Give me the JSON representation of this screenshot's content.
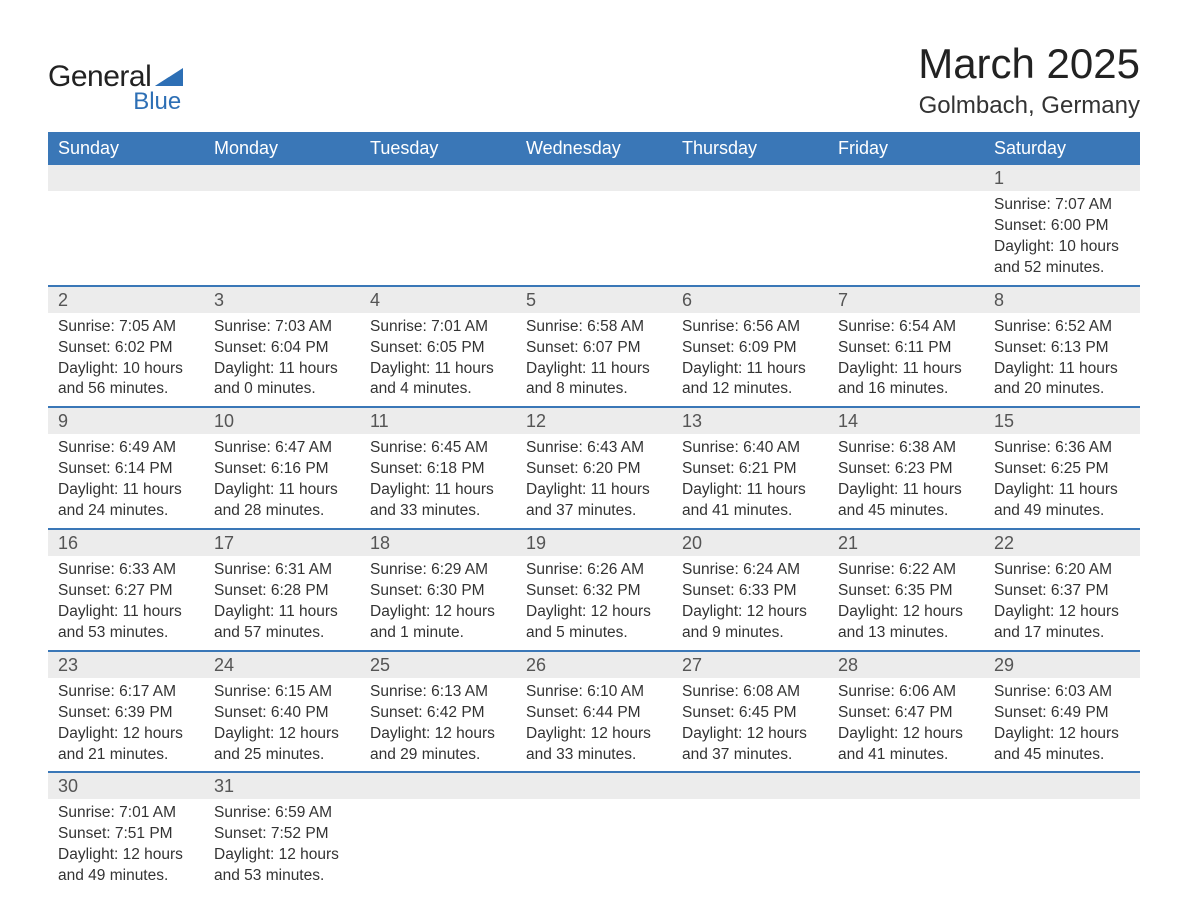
{
  "logo": {
    "text_general": "General",
    "text_blue": "Blue",
    "shape_color": "#2d6fb5"
  },
  "header": {
    "month_title": "March 2025",
    "location": "Golmbach, Germany"
  },
  "colors": {
    "header_bg": "#3a77b7",
    "header_text": "#ffffff",
    "daynum_bg": "#ececec",
    "row_border": "#3a77b7",
    "body_text": "#333333",
    "page_bg": "#ffffff"
  },
  "typography": {
    "month_title_fontsize": 42,
    "location_fontsize": 24,
    "dayhead_fontsize": 18,
    "daynum_fontsize": 18,
    "cell_fontsize": 15.5,
    "font_family": "Arial"
  },
  "day_headers": [
    "Sunday",
    "Monday",
    "Tuesday",
    "Wednesday",
    "Thursday",
    "Friday",
    "Saturday"
  ],
  "weeks": [
    {
      "nums": [
        "",
        "",
        "",
        "",
        "",
        "",
        "1"
      ],
      "cells": [
        null,
        null,
        null,
        null,
        null,
        null,
        {
          "sunrise": "Sunrise: 7:07 AM",
          "sunset": "Sunset: 6:00 PM",
          "dl1": "Daylight: 10 hours",
          "dl2": "and 52 minutes."
        }
      ]
    },
    {
      "nums": [
        "2",
        "3",
        "4",
        "5",
        "6",
        "7",
        "8"
      ],
      "cells": [
        {
          "sunrise": "Sunrise: 7:05 AM",
          "sunset": "Sunset: 6:02 PM",
          "dl1": "Daylight: 10 hours",
          "dl2": "and 56 minutes."
        },
        {
          "sunrise": "Sunrise: 7:03 AM",
          "sunset": "Sunset: 6:04 PM",
          "dl1": "Daylight: 11 hours",
          "dl2": "and 0 minutes."
        },
        {
          "sunrise": "Sunrise: 7:01 AM",
          "sunset": "Sunset: 6:05 PM",
          "dl1": "Daylight: 11 hours",
          "dl2": "and 4 minutes."
        },
        {
          "sunrise": "Sunrise: 6:58 AM",
          "sunset": "Sunset: 6:07 PM",
          "dl1": "Daylight: 11 hours",
          "dl2": "and 8 minutes."
        },
        {
          "sunrise": "Sunrise: 6:56 AM",
          "sunset": "Sunset: 6:09 PM",
          "dl1": "Daylight: 11 hours",
          "dl2": "and 12 minutes."
        },
        {
          "sunrise": "Sunrise: 6:54 AM",
          "sunset": "Sunset: 6:11 PM",
          "dl1": "Daylight: 11 hours",
          "dl2": "and 16 minutes."
        },
        {
          "sunrise": "Sunrise: 6:52 AM",
          "sunset": "Sunset: 6:13 PM",
          "dl1": "Daylight: 11 hours",
          "dl2": "and 20 minutes."
        }
      ]
    },
    {
      "nums": [
        "9",
        "10",
        "11",
        "12",
        "13",
        "14",
        "15"
      ],
      "cells": [
        {
          "sunrise": "Sunrise: 6:49 AM",
          "sunset": "Sunset: 6:14 PM",
          "dl1": "Daylight: 11 hours",
          "dl2": "and 24 minutes."
        },
        {
          "sunrise": "Sunrise: 6:47 AM",
          "sunset": "Sunset: 6:16 PM",
          "dl1": "Daylight: 11 hours",
          "dl2": "and 28 minutes."
        },
        {
          "sunrise": "Sunrise: 6:45 AM",
          "sunset": "Sunset: 6:18 PM",
          "dl1": "Daylight: 11 hours",
          "dl2": "and 33 minutes."
        },
        {
          "sunrise": "Sunrise: 6:43 AM",
          "sunset": "Sunset: 6:20 PM",
          "dl1": "Daylight: 11 hours",
          "dl2": "and 37 minutes."
        },
        {
          "sunrise": "Sunrise: 6:40 AM",
          "sunset": "Sunset: 6:21 PM",
          "dl1": "Daylight: 11 hours",
          "dl2": "and 41 minutes."
        },
        {
          "sunrise": "Sunrise: 6:38 AM",
          "sunset": "Sunset: 6:23 PM",
          "dl1": "Daylight: 11 hours",
          "dl2": "and 45 minutes."
        },
        {
          "sunrise": "Sunrise: 6:36 AM",
          "sunset": "Sunset: 6:25 PM",
          "dl1": "Daylight: 11 hours",
          "dl2": "and 49 minutes."
        }
      ]
    },
    {
      "nums": [
        "16",
        "17",
        "18",
        "19",
        "20",
        "21",
        "22"
      ],
      "cells": [
        {
          "sunrise": "Sunrise: 6:33 AM",
          "sunset": "Sunset: 6:27 PM",
          "dl1": "Daylight: 11 hours",
          "dl2": "and 53 minutes."
        },
        {
          "sunrise": "Sunrise: 6:31 AM",
          "sunset": "Sunset: 6:28 PM",
          "dl1": "Daylight: 11 hours",
          "dl2": "and 57 minutes."
        },
        {
          "sunrise": "Sunrise: 6:29 AM",
          "sunset": "Sunset: 6:30 PM",
          "dl1": "Daylight: 12 hours",
          "dl2": "and 1 minute."
        },
        {
          "sunrise": "Sunrise: 6:26 AM",
          "sunset": "Sunset: 6:32 PM",
          "dl1": "Daylight: 12 hours",
          "dl2": "and 5 minutes."
        },
        {
          "sunrise": "Sunrise: 6:24 AM",
          "sunset": "Sunset: 6:33 PM",
          "dl1": "Daylight: 12 hours",
          "dl2": "and 9 minutes."
        },
        {
          "sunrise": "Sunrise: 6:22 AM",
          "sunset": "Sunset: 6:35 PM",
          "dl1": "Daylight: 12 hours",
          "dl2": "and 13 minutes."
        },
        {
          "sunrise": "Sunrise: 6:20 AM",
          "sunset": "Sunset: 6:37 PM",
          "dl1": "Daylight: 12 hours",
          "dl2": "and 17 minutes."
        }
      ]
    },
    {
      "nums": [
        "23",
        "24",
        "25",
        "26",
        "27",
        "28",
        "29"
      ],
      "cells": [
        {
          "sunrise": "Sunrise: 6:17 AM",
          "sunset": "Sunset: 6:39 PM",
          "dl1": "Daylight: 12 hours",
          "dl2": "and 21 minutes."
        },
        {
          "sunrise": "Sunrise: 6:15 AM",
          "sunset": "Sunset: 6:40 PM",
          "dl1": "Daylight: 12 hours",
          "dl2": "and 25 minutes."
        },
        {
          "sunrise": "Sunrise: 6:13 AM",
          "sunset": "Sunset: 6:42 PM",
          "dl1": "Daylight: 12 hours",
          "dl2": "and 29 minutes."
        },
        {
          "sunrise": "Sunrise: 6:10 AM",
          "sunset": "Sunset: 6:44 PM",
          "dl1": "Daylight: 12 hours",
          "dl2": "and 33 minutes."
        },
        {
          "sunrise": "Sunrise: 6:08 AM",
          "sunset": "Sunset: 6:45 PM",
          "dl1": "Daylight: 12 hours",
          "dl2": "and 37 minutes."
        },
        {
          "sunrise": "Sunrise: 6:06 AM",
          "sunset": "Sunset: 6:47 PM",
          "dl1": "Daylight: 12 hours",
          "dl2": "and 41 minutes."
        },
        {
          "sunrise": "Sunrise: 6:03 AM",
          "sunset": "Sunset: 6:49 PM",
          "dl1": "Daylight: 12 hours",
          "dl2": "and 45 minutes."
        }
      ]
    },
    {
      "nums": [
        "30",
        "31",
        "",
        "",
        "",
        "",
        ""
      ],
      "cells": [
        {
          "sunrise": "Sunrise: 7:01 AM",
          "sunset": "Sunset: 7:51 PM",
          "dl1": "Daylight: 12 hours",
          "dl2": "and 49 minutes."
        },
        {
          "sunrise": "Sunrise: 6:59 AM",
          "sunset": "Sunset: 7:52 PM",
          "dl1": "Daylight: 12 hours",
          "dl2": "and 53 minutes."
        },
        null,
        null,
        null,
        null,
        null
      ]
    }
  ]
}
